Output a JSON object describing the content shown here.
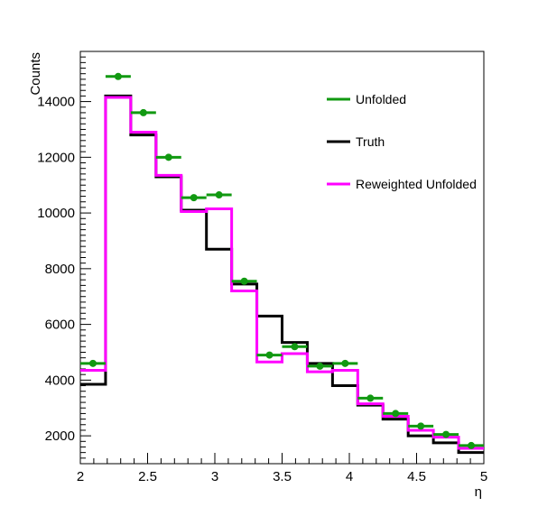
{
  "chart_data": {
    "type": "line",
    "xlabel": "η",
    "ylabel": "Counts",
    "xlim": [
      2,
      5
    ],
    "ylim": [
      1000,
      15800
    ],
    "bin_edges": [
      2.0,
      2.1875,
      2.375,
      2.5625,
      2.75,
      2.9375,
      3.125,
      3.3125,
      3.5,
      3.6875,
      3.875,
      4.0625,
      4.25,
      4.4375,
      4.625,
      4.8125,
      5.0
    ],
    "x_ticks": [
      {
        "value": 2,
        "label": "2"
      },
      {
        "value": 2.5,
        "label": "2.5"
      },
      {
        "value": 3,
        "label": "3"
      },
      {
        "value": 3.5,
        "label": "3.5"
      },
      {
        "value": 4,
        "label": "4"
      },
      {
        "value": 4.5,
        "label": "4.5"
      },
      {
        "value": 5,
        "label": "5"
      }
    ],
    "y_ticks": [
      {
        "value": 2000,
        "label": "2000"
      },
      {
        "value": 4000,
        "label": "4000"
      },
      {
        "value": 6000,
        "label": "6000"
      },
      {
        "value": 8000,
        "label": "8000"
      },
      {
        "value": 10000,
        "label": "10000"
      },
      {
        "value": 12000,
        "label": "12000"
      },
      {
        "value": 14000,
        "label": "14000"
      }
    ],
    "legend_position": "top-right",
    "series": [
      {
        "name": "Unfolded",
        "style": "markers",
        "color": "#119911",
        "values": [
          4600,
          14900,
          13600,
          12000,
          10550,
          10650,
          7550,
          4900,
          5200,
          4500,
          4600,
          3350,
          2800,
          2350,
          2050,
          1650
        ]
      },
      {
        "name": "Truth",
        "style": "step",
        "color": "#000000",
        "values": [
          3850,
          14200,
          12800,
          11300,
          10100,
          8700,
          7450,
          6300,
          5350,
          4600,
          3800,
          3100,
          2600,
          2000,
          1750,
          1400
        ]
      },
      {
        "name": "Reweighted Unfolded",
        "style": "step",
        "color": "#ff00ff",
        "values": [
          4350,
          14150,
          12900,
          11350,
          10050,
          10150,
          7200,
          4650,
          4950,
          4300,
          4350,
          3150,
          2700,
          2200,
          1950,
          1550
        ]
      }
    ]
  }
}
